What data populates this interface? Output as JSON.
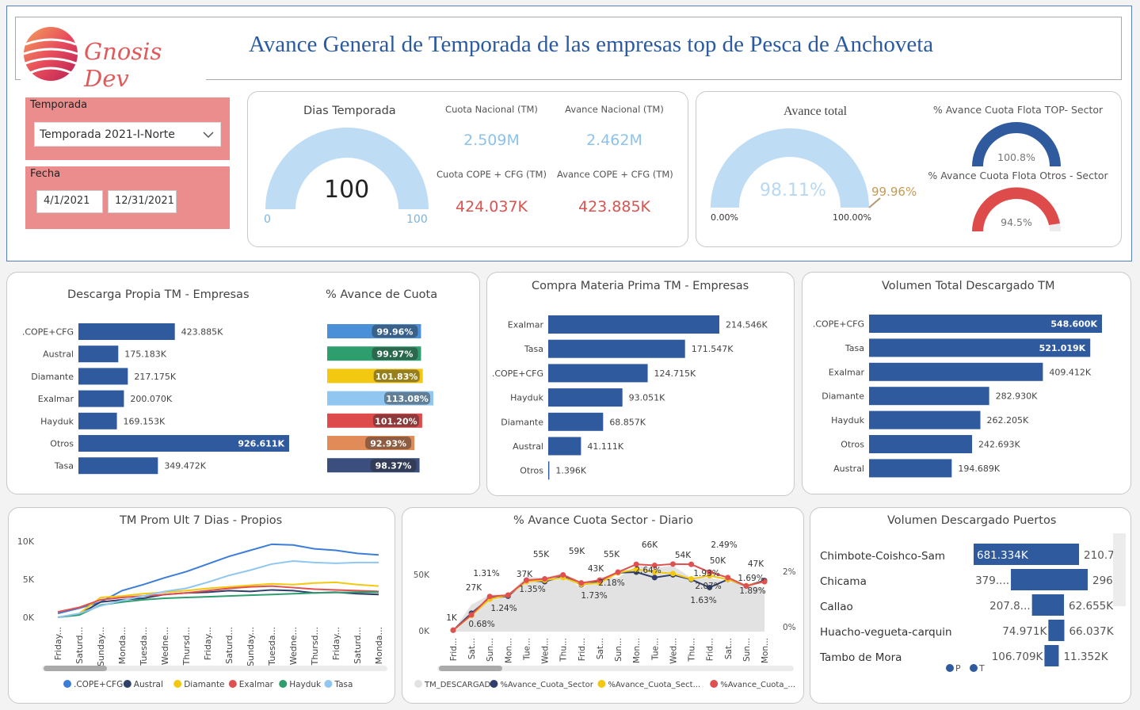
{
  "header": {
    "logo_text": "Gnosis Dev",
    "title": "Avance General de Temporada de las empresas top de Pesca de Anchoveta"
  },
  "filters": {
    "temporada_label": "Temporada",
    "temporada_value": "Temporada 2021-I-Norte",
    "fecha_label": "Fecha",
    "fecha_start": "4/1/2021",
    "fecha_end": "12/31/2021"
  },
  "kpis": {
    "dias_title": "Dias Temporada",
    "dias_value": "100",
    "dias_min": "0",
    "dias_max": "100",
    "cuota_nacional_label": "Cuota Nacional (TM)",
    "cuota_nacional_value": "2.509M",
    "avance_nacional_label": "Avance Nacional (TM)",
    "avance_nacional_value": "2.462M",
    "cuota_cope_label": "Cuota COPE + CFG (TM)",
    "cuota_cope_value": "424.037K",
    "avance_cope_label": "Avance COPE + CFG (TM)",
    "avance_cope_value": "423.885K",
    "avance_total_title": "Avance total",
    "avance_total_value": "98.11%",
    "avance_total_target": "99.96%",
    "avance_total_min": "0.00%",
    "avance_total_max": "100.00%",
    "top_title": "% Avance Cuota Flota TOP- Sector",
    "top_value": "100.8%",
    "otros_title": "% Avance Cuota Flota Otros - Sector",
    "otros_value": "94.5%"
  },
  "descarga_propia": {
    "title": "Descarga Propia TM - Empresas",
    "categories": [
      ".COPE+CFG",
      "Austral",
      "Diamante",
      "Exalmar",
      "Hayduk",
      "Otros",
      "Tasa"
    ],
    "values": [
      423.885,
      175.183,
      217.175,
      200.07,
      169.153,
      926.611,
      349.472
    ],
    "labels": [
      "423.885K",
      "175.183K",
      "217.175K",
      "200.070K",
      "169.153K",
      "926.611K",
      "349.472K"
    ]
  },
  "avance_cuota": {
    "title": "% Avance de Cuota",
    "values": [
      99.96,
      99.97,
      101.83,
      113.08,
      101.2,
      92.93,
      98.37
    ],
    "labels": [
      "99.96%",
      "99.97%",
      "101.83%",
      "113.08%",
      "101.20%",
      "92.93%",
      "98.37%"
    ],
    "colors": [
      "#4a90d9",
      "#2e9e6e",
      "#f2c811",
      "#90c6f0",
      "#dd4b4b",
      "#e08b58",
      "#3b4e7e"
    ]
  },
  "compra_mp": {
    "title": "Compra Materia Prima TM - Empresas",
    "categories": [
      "Exalmar",
      "Tasa",
      ".COPE+CFG",
      "Hayduk",
      "Diamante",
      "Austral",
      "Otros"
    ],
    "values": [
      214.546,
      171.547,
      124.715,
      93.051,
      68.857,
      41.111,
      1.396
    ],
    "labels": [
      "214.546K",
      "171.547K",
      "124.715K",
      "93.051K",
      "68.857K",
      "41.111K",
      "1.396K"
    ]
  },
  "volumen_total": {
    "title": "Volumen Total Descargado TM",
    "categories": [
      ".COPE+CFG",
      "Tasa",
      "Exalmar",
      "Diamante",
      "Hayduk",
      "Otros",
      "Austral"
    ],
    "values": [
      548.6,
      521.019,
      409.412,
      282.93,
      262.205,
      242.693,
      194.689
    ],
    "labels": [
      "548.600K",
      "521.019K",
      "409.412K",
      "282.930K",
      "262.205K",
      "242.693K",
      "194.689K"
    ]
  },
  "chart_data": [
    {
      "type": "line",
      "title": "TM Prom Ult 7 Dias - Propios",
      "y_ticks": [
        "10K",
        "5K",
        "0K"
      ],
      "ylim": [
        0,
        10000
      ],
      "x": [
        "Friday...",
        "Saturd...",
        "Sunday...",
        "Monda...",
        "Tuesda...",
        "Wedne...",
        "Thursd...",
        "Friday...",
        "Saturd...",
        "Sunday...",
        "Tuesda...",
        "Wedne...",
        "Thursd...",
        "Friday...",
        "Saturd...",
        "Monda..."
      ],
      "series": [
        {
          "name": ".COPE+CFG",
          "color": "#3c7dd8",
          "values": [
            500,
            1200,
            2000,
            3500,
            4300,
            5200,
            6000,
            7000,
            8000,
            8800,
            9600,
            9500,
            9000,
            8800,
            8400,
            8200
          ]
        },
        {
          "name": "Austral",
          "color": "#2f3f6a",
          "values": [
            0,
            400,
            2000,
            2300,
            2500,
            3000,
            3200,
            3300,
            3500,
            3400,
            3600,
            3500,
            3200,
            3300,
            3100,
            3000
          ]
        },
        {
          "name": "Diamante",
          "color": "#f2c811",
          "values": [
            0,
            500,
            2600,
            2800,
            3100,
            3300,
            3500,
            3800,
            4000,
            4200,
            4400,
            4300,
            4500,
            4600,
            4300,
            4100
          ]
        },
        {
          "name": "Exalmar",
          "color": "#e05050",
          "values": [
            700,
            1300,
            2300,
            2600,
            2800,
            3000,
            3200,
            3500,
            3800,
            4000,
            4100,
            3900,
            3700,
            3600,
            3500,
            3400
          ]
        },
        {
          "name": "Hayduk",
          "color": "#2e9e6e",
          "values": [
            0,
            300,
            1600,
            2000,
            2300,
            2500,
            2600,
            2700,
            2800,
            2900,
            3000,
            3100,
            3200,
            3250,
            3300,
            3300
          ]
        },
        {
          "name": "Tasa",
          "color": "#90c6f0",
          "values": [
            0,
            500,
            1500,
            2200,
            2800,
            3400,
            3800,
            4600,
            5500,
            6200,
            7000,
            7400,
            7200,
            7100,
            7200,
            7200
          ]
        }
      ]
    },
    {
      "type": "line",
      "title": "% Avance Cuota Sector - Diario",
      "y_left_ticks": [
        "50K",
        "0K"
      ],
      "y_right_ticks": [
        "2%",
        "0%"
      ],
      "x": [
        "Frid...",
        "Sat...",
        "Sun...",
        "Mon...",
        "Tue...",
        "Wed...",
        "Thu...",
        "Frid...",
        "Sat...",
        "Sun...",
        "Mon...",
        "Tue...",
        "Wed...",
        "Thu...",
        "Frid...",
        "Sat...",
        "Sun...",
        "Mon..."
      ],
      "series": [
        {
          "name": "TM_DESCARGADO",
          "color": "#e2e2e2",
          "values": [
            1000,
            27000,
            37000,
            37000,
            55000,
            54000,
            59000,
            43000,
            55000,
            54000,
            66000,
            64000,
            66000,
            54000,
            54000,
            50000,
            47000,
            44000
          ]
        },
        {
          "name": "%Avance_Cuota_Sector",
          "color": "#2f3f6a",
          "values": [
            0.05,
            0.68,
            1.24,
            1.31,
            1.9,
            1.85,
            2.05,
            1.73,
            1.85,
            2.18,
            2.2,
            2.0,
            2.1,
            1.93,
            1.63,
            1.93,
            1.69,
            1.89
          ]
        },
        {
          "name": "%Avance_Cuota_Sect...",
          "color": "#f2c811",
          "values": [
            0.05,
            0.6,
            1.2,
            1.35,
            1.85,
            1.9,
            2.0,
            1.75,
            1.8,
            2.18,
            2.3,
            2.2,
            2.15,
            1.95,
            2.07,
            1.93,
            1.7,
            1.85
          ]
        },
        {
          "name": "%Avance_Cuota_...",
          "color": "#e05050",
          "values": [
            0.05,
            0.62,
            1.3,
            1.35,
            1.9,
            1.95,
            2.1,
            1.8,
            1.9,
            2.2,
            2.49,
            2.45,
            2.5,
            2.49,
            2.2,
            2.0,
            1.69,
            1.85
          ]
        }
      ],
      "labels_top": [
        "1K",
        "27K",
        "37K",
        "55K",
        "59K",
        "43K",
        "55K",
        "66K",
        "54K",
        "50K",
        "47K",
        "2.49%",
        "1.31%",
        "0.68%",
        "1.24%",
        "1.35%",
        "1.73%",
        "2.18%",
        "2.64%",
        "1.93%",
        "2.07%",
        "1.63%",
        "1.69%",
        "1.89%"
      ]
    }
  ],
  "puertos": {
    "title": "Volumen Descargado Puertos",
    "categories": [
      "Chimbote-Coishco-Sam",
      "Chicama",
      "Callao",
      "Huacho-vegueta-carquin",
      "Tambo de Mora"
    ],
    "p_values": [
      681.334,
      379.0,
      207.8,
      74.971,
      106.709
    ],
    "p_labels": [
      "681.334K",
      "379....",
      "207.8...",
      "74.971K",
      "106.709K"
    ],
    "t_values": [
      210.7,
      296.0,
      62.655,
      66.037,
      11.352
    ],
    "t_labels": [
      "210.7...",
      "296....",
      "62.655K",
      "66.037K",
      "11.352K"
    ],
    "legend": [
      "P",
      "T"
    ]
  }
}
